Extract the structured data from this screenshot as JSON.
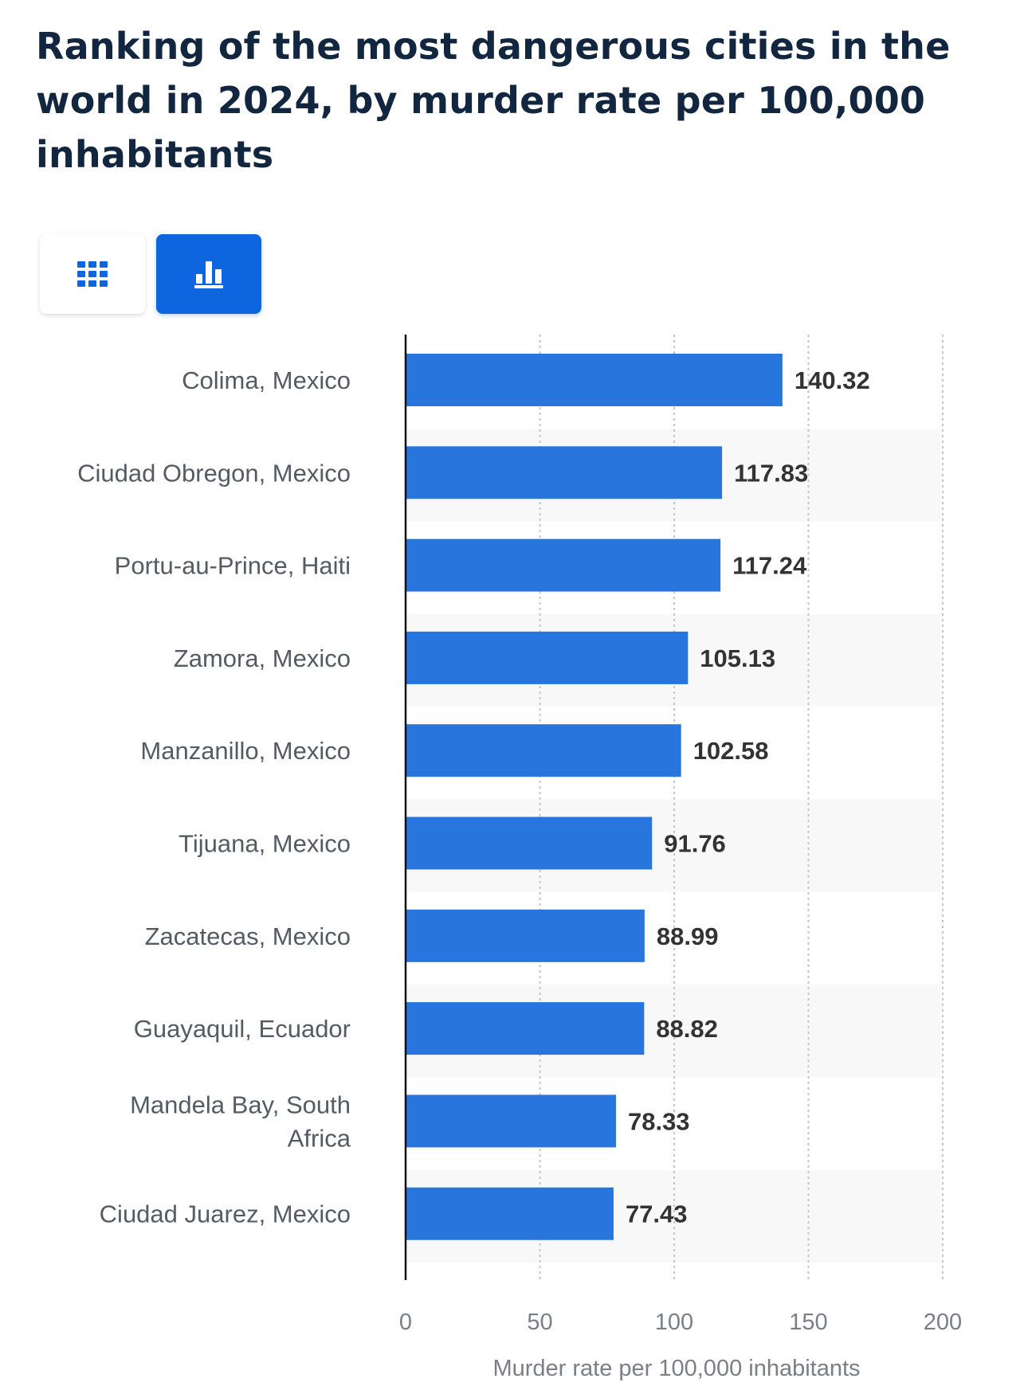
{
  "header": {
    "title": "Ranking of the most dangerous cities in the world in 2024, by murder rate per 100,000 inhabitants"
  },
  "view_toggle": {
    "table_icon": "grid-icon",
    "chart_icon": "bar-chart-icon",
    "active": "chart",
    "accent_color": "#0d66e0"
  },
  "chart_data": {
    "type": "bar",
    "orientation": "horizontal",
    "title": "Ranking of the most dangerous cities in the world in 2024, by murder rate per 100,000 inhabitants",
    "categories": [
      "Colima, Mexico",
      "Ciudad Obregon, Mexico",
      "Portu-au-Prince, Haiti",
      "Zamora, Mexico",
      "Manzanillo, Mexico",
      "Tijuana, Mexico",
      "Zacatecas, Mexico",
      "Guayaquil, Ecuador",
      "Mandela Bay, South Africa",
      "Ciudad Juarez, Mexico"
    ],
    "values": [
      140.32,
      117.83,
      117.24,
      105.13,
      102.58,
      91.76,
      88.99,
      88.82,
      78.33,
      77.43
    ],
    "value_labels": [
      "140.32",
      "117.83",
      "117.24",
      "105.13",
      "102.58",
      "91.76",
      "88.99",
      "88.82",
      "78.33",
      "77.43"
    ],
    "xlabel": "Murder rate per 100,000 inhabitants",
    "ylabel": "",
    "xlim": [
      0,
      200
    ],
    "ticks": [
      0,
      50,
      100,
      150,
      200
    ],
    "tick_labels": [
      "0",
      "50",
      "100",
      "150",
      "200"
    ],
    "grid": true,
    "bar_color": "#2876dd"
  }
}
